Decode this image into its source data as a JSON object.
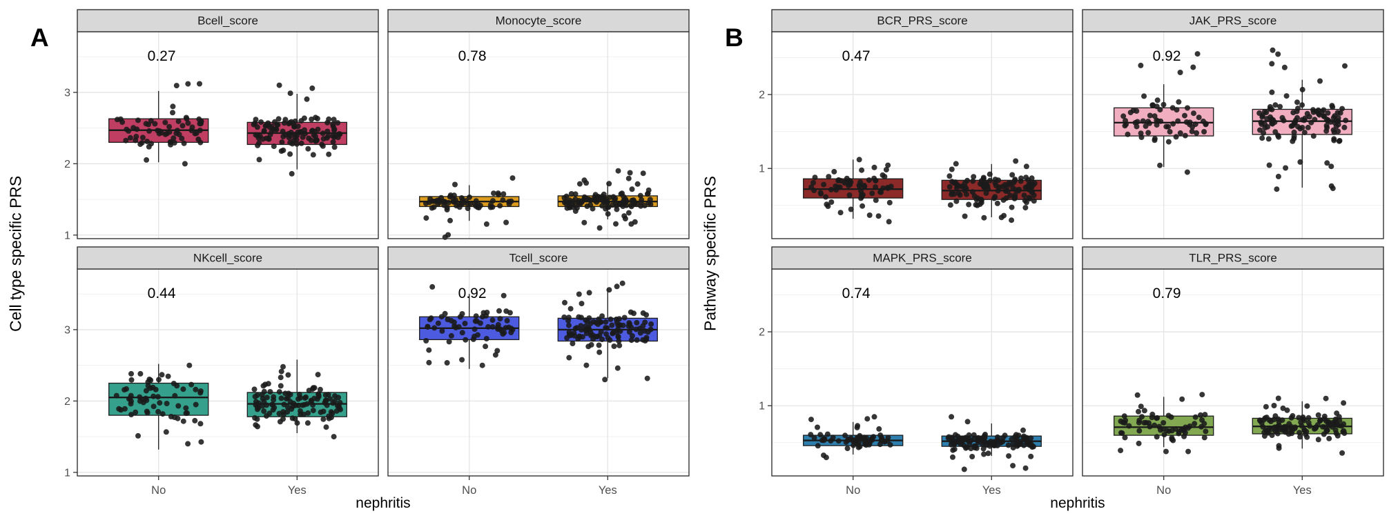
{
  "chart_data": [
    {
      "type": "boxplot",
      "panel_label": "A",
      "ylabel": "Cell type specific PRS",
      "xlabel": "nephritis",
      "categories": [
        "No",
        "Yes"
      ],
      "ylim": [
        0.95,
        3.85
      ],
      "yticks": [
        1,
        2,
        3
      ],
      "grid": true,
      "legend": "none",
      "facets": [
        {
          "title": "Bcell_score",
          "pvalue": "0.27",
          "color": "#C13E63",
          "groups": [
            {
              "category": "No",
              "n": 66,
              "whisker_low": 2.02,
              "q1": 2.3,
              "median": 2.47,
              "q3": 2.63,
              "whisker_high": 3.02,
              "points_min": 2.0,
              "points_max": 3.12
            },
            {
              "category": "Yes",
              "n": 118,
              "whisker_low": 1.92,
              "q1": 2.27,
              "median": 2.43,
              "q3": 2.58,
              "whisker_high": 2.98,
              "points_min": 1.86,
              "points_max": 3.1
            }
          ]
        },
        {
          "title": "Monocyte_score",
          "pvalue": "0.78",
          "color": "#DB9B1F",
          "groups": [
            {
              "category": "No",
              "n": 66,
              "whisker_low": 1.2,
              "q1": 1.4,
              "median": 1.47,
              "q3": 1.54,
              "whisker_high": 1.7,
              "points_min": 0.97,
              "points_max": 1.8
            },
            {
              "category": "Yes",
              "n": 118,
              "whisker_low": 1.22,
              "q1": 1.4,
              "median": 1.47,
              "q3": 1.55,
              "whisker_high": 1.74,
              "points_min": 1.1,
              "points_max": 1.9
            }
          ]
        },
        {
          "title": "NKcell_score",
          "pvalue": "0.44",
          "color": "#35A08B",
          "groups": [
            {
              "category": "No",
              "n": 66,
              "whisker_low": 1.32,
              "q1": 1.8,
              "median": 2.05,
              "q3": 2.25,
              "whisker_high": 2.52,
              "points_min": 1.4,
              "points_max": 2.5
            },
            {
              "category": "Yes",
              "n": 118,
              "whisker_low": 1.55,
              "q1": 1.78,
              "median": 1.96,
              "q3": 2.12,
              "whisker_high": 2.58,
              "points_min": 1.5,
              "points_max": 2.48
            }
          ]
        },
        {
          "title": "Tcell_score",
          "pvalue": "0.92",
          "color": "#4C5BE0",
          "groups": [
            {
              "category": "No",
              "n": 66,
              "whisker_low": 2.45,
              "q1": 2.86,
              "median": 3.02,
              "q3": 3.18,
              "whisker_high": 3.5,
              "points_min": 2.5,
              "points_max": 3.6
            },
            {
              "category": "Yes",
              "n": 118,
              "whisker_low": 2.32,
              "q1": 2.84,
              "median": 3.0,
              "q3": 3.16,
              "whisker_high": 3.58,
              "points_min": 2.3,
              "points_max": 3.65
            }
          ]
        }
      ]
    },
    {
      "type": "boxplot",
      "panel_label": "B",
      "ylabel": "Pathway specific PRS",
      "xlabel": "nephritis",
      "categories": [
        "No",
        "Yes"
      ],
      "ylim": [
        0.05,
        2.85
      ],
      "yticks": [
        1,
        2
      ],
      "grid": true,
      "legend": "none",
      "facets": [
        {
          "title": "BCR_PRS_score",
          "pvalue": "0.47",
          "color": "#8C2A2A",
          "groups": [
            {
              "category": "No",
              "n": 66,
              "whisker_low": 0.32,
              "q1": 0.6,
              "median": 0.72,
              "q3": 0.86,
              "whisker_high": 1.12,
              "points_min": 0.28,
              "points_max": 1.12
            },
            {
              "category": "Yes",
              "n": 118,
              "whisker_low": 0.34,
              "q1": 0.58,
              "median": 0.7,
              "q3": 0.84,
              "whisker_high": 1.06,
              "points_min": 0.3,
              "points_max": 1.1
            }
          ]
        },
        {
          "title": "JAK_PRS_score",
          "pvalue": "0.92",
          "color": "#F2AEC1",
          "groups": [
            {
              "category": "No",
              "n": 66,
              "whisker_low": 1.02,
              "q1": 1.44,
              "median": 1.62,
              "q3": 1.82,
              "whisker_high": 2.14,
              "points_min": 0.95,
              "points_max": 2.55
            },
            {
              "category": "Yes",
              "n": 118,
              "whisker_low": 0.74,
              "q1": 1.46,
              "median": 1.64,
              "q3": 1.8,
              "whisker_high": 2.2,
              "points_min": 0.72,
              "points_max": 2.6
            }
          ]
        },
        {
          "title": "MAPK_PRS_score",
          "pvalue": "0.74",
          "color": "#2E7FAD",
          "groups": [
            {
              "category": "No",
              "n": 66,
              "whisker_low": 0.34,
              "q1": 0.46,
              "median": 0.53,
              "q3": 0.6,
              "whisker_high": 0.78,
              "points_min": 0.3,
              "points_max": 0.85
            },
            {
              "category": "Yes",
              "n": 118,
              "whisker_low": 0.32,
              "q1": 0.45,
              "median": 0.52,
              "q3": 0.59,
              "whisker_high": 0.76,
              "points_min": 0.14,
              "points_max": 0.85
            }
          ]
        },
        {
          "title": "TLR_PRS_score",
          "pvalue": "0.79",
          "color": "#82A951",
          "groups": [
            {
              "category": "No",
              "n": 66,
              "whisker_low": 0.44,
              "q1": 0.6,
              "median": 0.71,
              "q3": 0.86,
              "whisker_high": 1.12,
              "points_min": 0.38,
              "points_max": 1.15
            },
            {
              "category": "Yes",
              "n": 118,
              "whisker_low": 0.42,
              "q1": 0.62,
              "median": 0.72,
              "q3": 0.83,
              "whisker_high": 1.06,
              "points_min": 0.36,
              "points_max": 1.1
            }
          ]
        }
      ]
    }
  ],
  "style": {
    "background": "#FFFFFF",
    "strip_fill": "#D8D8D8",
    "grid_major": "#E4E4E4",
    "grid_minor": "#F1F1F1",
    "border": "#333333",
    "box_stroke": "#1A1A1A",
    "point": "#1A1A1A",
    "tick_text": "#4D4D4D"
  }
}
